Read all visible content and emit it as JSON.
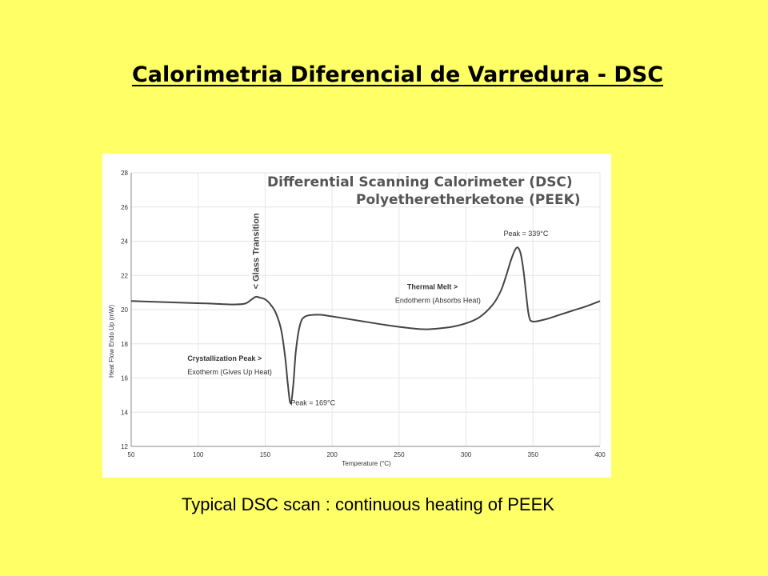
{
  "slide": {
    "title": "Calorimetria Diferencial de Varredura - DSC",
    "caption": "Typical DSC scan : continuous heating of PEEK",
    "background": "#ffff66"
  },
  "chart_data": {
    "type": "line",
    "title": "Differential Scanning Calorimeter (DSC)",
    "subtitle": "Polyetheretherketone (PEEK)",
    "xlabel": "Temperature (°C)",
    "ylabel": "Heat Flow Endo Up (mW)",
    "xlim": [
      50,
      400
    ],
    "ylim": [
      12,
      28
    ],
    "x_ticks": [
      "50",
      "100",
      "150",
      "200",
      "250",
      "300",
      "350",
      "400"
    ],
    "y_ticks": [
      "12",
      "14",
      "16",
      "18",
      "20",
      "22",
      "24",
      "26",
      "28"
    ],
    "grid": true,
    "series": [
      {
        "color": "#444444",
        "x": [
          50,
          70,
          90,
          110,
          125,
          135,
          140,
          143,
          146,
          150,
          154,
          158,
          162,
          165,
          167,
          169,
          171,
          173,
          176,
          180,
          190,
          200,
          220,
          240,
          260,
          270,
          280,
          290,
          300,
          310,
          320,
          326,
          330,
          334,
          337,
          339,
          341,
          343,
          345,
          347,
          350,
          360,
          370,
          380,
          390,
          400
        ],
        "y": [
          20.5,
          20.45,
          20.4,
          20.35,
          20.3,
          20.35,
          20.6,
          20.75,
          20.7,
          20.6,
          20.3,
          19.8,
          18.8,
          17.2,
          15.6,
          14.5,
          15.6,
          17.6,
          19.1,
          19.6,
          19.7,
          19.6,
          19.35,
          19.1,
          18.9,
          18.85,
          18.9,
          19.0,
          19.2,
          19.55,
          20.3,
          21.1,
          22.0,
          23.0,
          23.55,
          23.6,
          23.2,
          22.2,
          20.8,
          19.6,
          19.3,
          19.45,
          19.7,
          19.95,
          20.2,
          20.5
        ]
      }
    ],
    "annotations": [
      {
        "kind": "vertical-label",
        "text": "< Glass Transition",
        "x": 143,
        "y": 21.2
      },
      {
        "kind": "label",
        "text": "Peak = 169°C",
        "x": 169,
        "y": 14.4
      },
      {
        "kind": "label",
        "text": "Peak = 339°C",
        "x": 328,
        "y": 24.3
      },
      {
        "kind": "label-bold",
        "text": "Crystallization Peak >",
        "x": 92,
        "y": 17.0
      },
      {
        "kind": "label",
        "text": "Exotherm (Gives Up Heat)",
        "x": 92,
        "y": 16.2
      },
      {
        "kind": "label-bold",
        "text": "Thermal Melt >",
        "x": 256,
        "y": 21.2
      },
      {
        "kind": "label",
        "text": "Endotherm (Absorbs Heat)",
        "x": 247,
        "y": 20.4
      }
    ]
  }
}
